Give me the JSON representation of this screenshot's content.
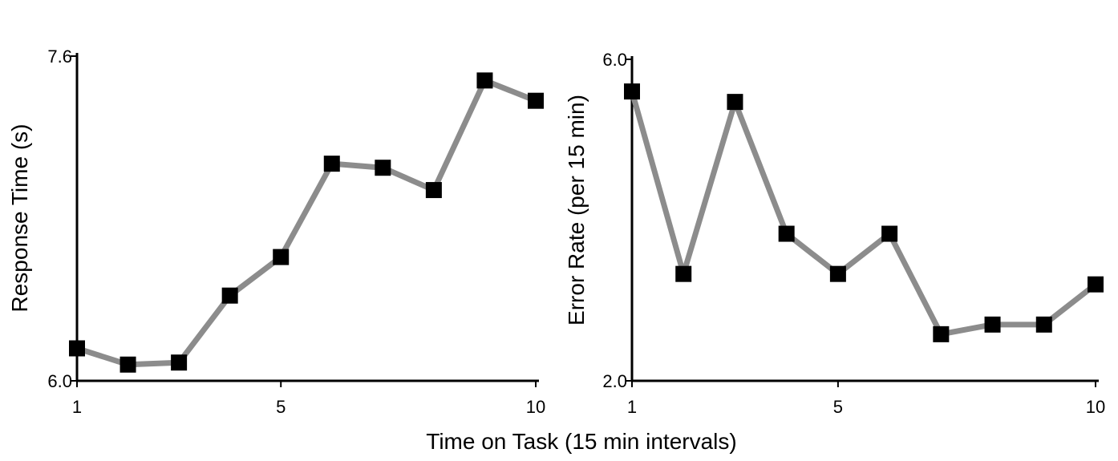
{
  "shared_xlabel": "Time on Task (15 min intervals)",
  "colors": {
    "line": "#8c8c8c",
    "marker": "#000000",
    "axis": "#000000"
  },
  "chart_data": [
    {
      "type": "line",
      "title": "",
      "xlabel": "",
      "ylabel": "Response Time (s)",
      "x": [
        1,
        2,
        3,
        4,
        5,
        6,
        7,
        8,
        9,
        10
      ],
      "values": [
        6.16,
        6.08,
        6.09,
        6.42,
        6.61,
        7.07,
        7.05,
        6.94,
        7.48,
        7.38
      ],
      "xlim": [
        1,
        10
      ],
      "ylim": [
        6.0,
        7.6
      ],
      "xticks": [
        "1",
        "5",
        "10"
      ],
      "xtick_values": [
        1,
        5,
        10
      ],
      "yticks": [
        "6.0",
        "7.6"
      ],
      "ytick_values": [
        6.0,
        7.6
      ],
      "marker": "square",
      "grid": false
    },
    {
      "type": "line",
      "title": "",
      "xlabel": "",
      "ylabel": "Error Rate (per 15 min)",
      "x": [
        1,
        2,
        3,
        4,
        5,
        6,
        7,
        8,
        9,
        10
      ],
      "values": [
        5.6,
        3.33,
        5.47,
        3.83,
        3.33,
        3.83,
        2.58,
        2.7,
        2.7,
        3.2
      ],
      "xlim": [
        1,
        10
      ],
      "ylim": [
        2.0,
        6.0
      ],
      "xticks": [
        "1",
        "5",
        "10"
      ],
      "xtick_values": [
        1,
        5,
        10
      ],
      "yticks": [
        "2.0",
        "6.0"
      ],
      "ytick_values": [
        2.0,
        6.0
      ],
      "marker": "square",
      "grid": false
    }
  ]
}
